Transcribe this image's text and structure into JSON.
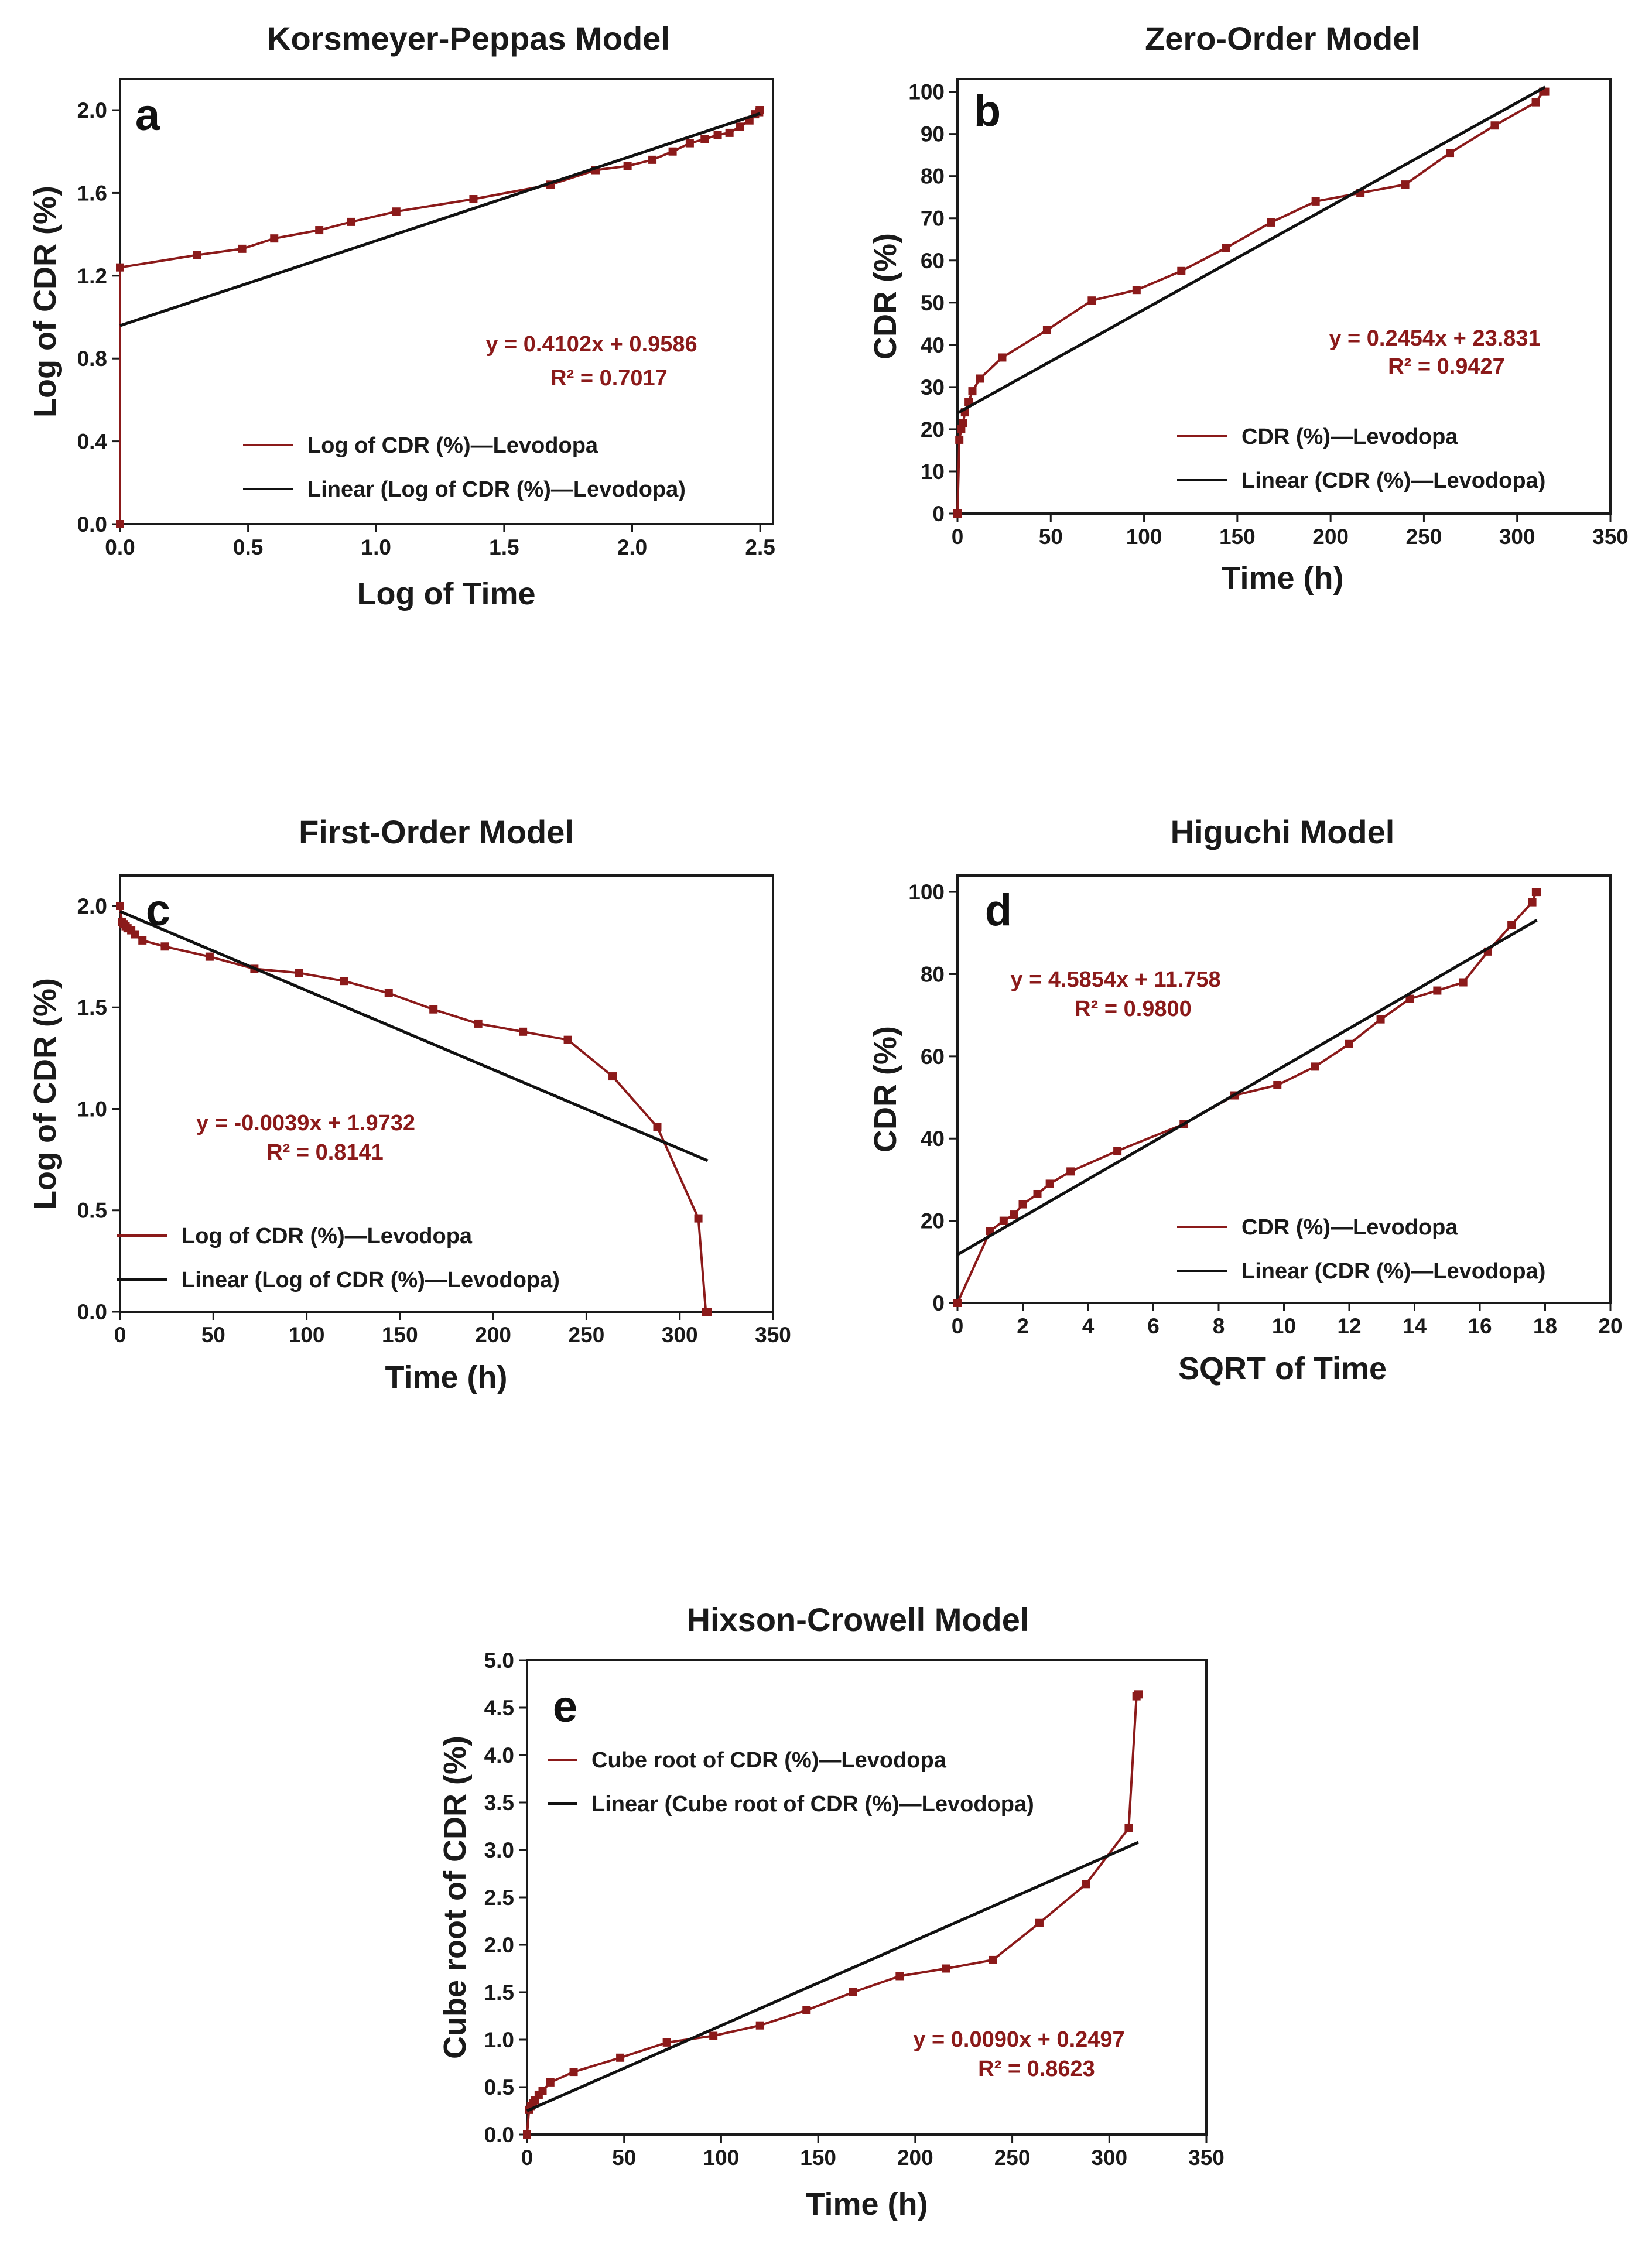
{
  "figure": {
    "colors": {
      "data": "#8b1a1a",
      "fit": "#111111",
      "axis": "#1a1a1a"
    }
  },
  "chart_data": [
    {
      "type": "line",
      "panel_label": "a",
      "title": "Korsmeyer-Peppas Model",
      "xlabel": "Log of Time",
      "ylabel": "Log of CDR (%)",
      "xlim": [
        0,
        2.55
      ],
      "ylim": [
        0,
        2.15
      ],
      "xticks": [
        0,
        0.5,
        1,
        1.5,
        2,
        2.5
      ],
      "xtick_labels": [
        "0.0",
        "0.5",
        "1.0",
        "1.5",
        "2.0",
        "2.5"
      ],
      "yticks": [
        0,
        0.4,
        0.8,
        1.2,
        1.6,
        2.0
      ],
      "ytick_labels": [
        "0.0",
        "0.4",
        "0.8",
        "1.2",
        "1.6",
        "2.0"
      ],
      "series": [
        {
          "name": "Log of CDR (%)—Levodopa",
          "kind": "data",
          "x": [
            0,
            0,
            0.301,
            0.477,
            0.602,
            0.778,
            0.903,
            1.079,
            1.38,
            1.681,
            1.857,
            1.982,
            2.079,
            2.158,
            2.225,
            2.283,
            2.334,
            2.38,
            2.42,
            2.458,
            2.48,
            2.496,
            2.498
          ],
          "y": [
            0,
            1.24,
            1.3,
            1.33,
            1.38,
            1.42,
            1.46,
            1.51,
            1.57,
            1.64,
            1.71,
            1.73,
            1.76,
            1.8,
            1.84,
            1.86,
            1.88,
            1.89,
            1.92,
            1.95,
            1.98,
            1.99,
            2.0
          ]
        },
        {
          "name": "Linear (Log of CDR (%)—Levodopa)",
          "kind": "fit",
          "x": [
            0,
            2.5
          ],
          "y": [
            0.9586,
            1.984
          ]
        }
      ],
      "equation": "y = 0.4102x + 0.9586",
      "r2": "R² = 0.7017",
      "legend_position": "bottom-right"
    },
    {
      "type": "line",
      "panel_label": "b",
      "title": "Zero-Order Model",
      "xlabel": "Time (h)",
      "ylabel": "CDR (%)",
      "xlim": [
        0,
        350
      ],
      "ylim": [
        0,
        103
      ],
      "xticks": [
        0,
        50,
        100,
        150,
        200,
        250,
        300,
        350
      ],
      "xtick_labels": [
        "0",
        "50",
        "100",
        "150",
        "200",
        "250",
        "300",
        "350"
      ],
      "yticks": [
        0,
        10,
        20,
        30,
        40,
        50,
        60,
        70,
        80,
        90,
        100
      ],
      "ytick_labels": [
        "0",
        "10",
        "20",
        "30",
        "40",
        "50",
        "60",
        "70",
        "80",
        "90",
        "100"
      ],
      "series": [
        {
          "name": "CDR (%)—Levodopa",
          "kind": "data",
          "x": [
            0,
            1,
            2,
            3,
            4,
            6,
            8,
            12,
            24,
            48,
            72,
            96,
            120,
            144,
            168,
            192,
            216,
            240,
            264,
            288,
            310,
            314,
            315
          ],
          "y": [
            0,
            17.5,
            20,
            21.5,
            24,
            26.5,
            29,
            32,
            37,
            43.5,
            50.5,
            53,
            57.5,
            63,
            69,
            74,
            76,
            78,
            85.5,
            92,
            97.5,
            100,
            100
          ]
        },
        {
          "name": "Linear (CDR (%)—Levodopa)",
          "kind": "fit",
          "x": [
            0,
            315
          ],
          "y": [
            23.831,
            101.1
          ]
        }
      ],
      "equation": "y = 0.2454x + 23.831",
      "r2": "R² = 0.9427",
      "legend_position": "bottom-right"
    },
    {
      "type": "line",
      "panel_label": "c",
      "title": "First-Order Model",
      "xlabel": "Time (h)",
      "ylabel": "Log of CDR (%)",
      "xlim": [
        0,
        350
      ],
      "ylim": [
        0,
        2.15
      ],
      "xticks": [
        0,
        50,
        100,
        150,
        200,
        250,
        300,
        350
      ],
      "xtick_labels": [
        "0",
        "50",
        "100",
        "150",
        "200",
        "250",
        "300",
        "350"
      ],
      "yticks": [
        0,
        0.5,
        1,
        1.5,
        2
      ],
      "ytick_labels": [
        "0.0",
        "0.5",
        "1.0",
        "1.5",
        "2.0"
      ],
      "series": [
        {
          "name": "Log of CDR (%)—Levodopa",
          "kind": "data",
          "x": [
            0,
            1,
            2,
            3,
            4,
            6,
            8,
            12,
            24,
            48,
            72,
            96,
            120,
            144,
            168,
            192,
            216,
            240,
            264,
            288,
            310,
            314,
            315
          ],
          "y": [
            2.0,
            1.92,
            1.91,
            1.9,
            1.89,
            1.88,
            1.86,
            1.83,
            1.8,
            1.75,
            1.69,
            1.67,
            1.63,
            1.57,
            1.49,
            1.42,
            1.38,
            1.34,
            1.16,
            0.91,
            0.46,
            0.0,
            0.0
          ]
        },
        {
          "name": "Linear (Log of CDR (%)—Levodopa)",
          "kind": "fit",
          "x": [
            0,
            315
          ],
          "y": [
            1.9732,
            0.7447
          ]
        }
      ],
      "equation": "y = -0.0039x + 1.9732",
      "r2": "R² = 0.8141",
      "legend_position": "bottom-left"
    },
    {
      "type": "line",
      "panel_label": "d",
      "title": "Higuchi Model",
      "xlabel": "SQRT of Time",
      "ylabel": "CDR (%)",
      "xlim": [
        0,
        20
      ],
      "ylim": [
        0,
        104
      ],
      "xticks": [
        0,
        2,
        4,
        6,
        8,
        10,
        12,
        14,
        16,
        18,
        20
      ],
      "xtick_labels": [
        "0",
        "2",
        "4",
        "6",
        "8",
        "10",
        "12",
        "14",
        "16",
        "18",
        "20"
      ],
      "yticks": [
        0,
        20,
        40,
        60,
        80,
        100
      ],
      "ytick_labels": [
        "0",
        "20",
        "40",
        "60",
        "80",
        "100"
      ],
      "series": [
        {
          "name": "CDR (%)—Levodopa",
          "kind": "data",
          "x": [
            0,
            1,
            1.414,
            1.732,
            2,
            2.449,
            2.828,
            3.464,
            4.899,
            6.928,
            8.485,
            9.798,
            10.954,
            12,
            12.961,
            13.856,
            14.697,
            15.492,
            16.248,
            16.971,
            17.607,
            17.72,
            17.748
          ],
          "y": [
            0,
            17.5,
            20,
            21.5,
            24,
            26.5,
            29,
            32,
            37,
            43.5,
            50.5,
            53,
            57.5,
            63,
            69,
            74,
            76,
            78,
            85.5,
            92,
            97.5,
            100,
            100
          ]
        },
        {
          "name": "Linear (CDR (%)—Levodopa)",
          "kind": "fit",
          "x": [
            0,
            17.748
          ],
          "y": [
            11.758,
            93.14
          ]
        }
      ],
      "equation": "y = 4.5854x + 11.758",
      "r2": "R² = 0.9800",
      "legend_position": "bottom-right"
    },
    {
      "type": "line",
      "panel_label": "e",
      "title": "Hixson-Crowell Model",
      "xlabel": "Time (h)",
      "ylabel": "Cube root of CDR (%)",
      "xlim": [
        0,
        350
      ],
      "ylim": [
        0,
        5.0
      ],
      "xticks": [
        0,
        50,
        100,
        150,
        200,
        250,
        300,
        350
      ],
      "xtick_labels": [
        "0",
        "50",
        "100",
        "150",
        "200",
        "250",
        "300",
        "350"
      ],
      "yticks": [
        0,
        0.5,
        1,
        1.5,
        2,
        2.5,
        3,
        3.5,
        4,
        4.5,
        5
      ],
      "ytick_labels": [
        "0.0",
        "0.5",
        "1.0",
        "1.5",
        "2.0",
        "2.5",
        "3.0",
        "3.5",
        "4.0",
        "4.5",
        "5.0"
      ],
      "series": [
        {
          "name": "Cube root of CDR (%)—Levodopa",
          "kind": "data",
          "x": [
            0,
            1,
            2,
            3,
            4,
            6,
            8,
            12,
            24,
            48,
            72,
            96,
            120,
            144,
            168,
            192,
            216,
            240,
            264,
            288,
            310,
            314,
            315
          ],
          "y": [
            0,
            0.26,
            0.3,
            0.33,
            0.36,
            0.42,
            0.46,
            0.55,
            0.66,
            0.81,
            0.97,
            1.04,
            1.15,
            1.31,
            1.5,
            1.67,
            1.75,
            1.84,
            2.23,
            2.64,
            3.23,
            4.62,
            4.64
          ]
        },
        {
          "name": "Linear (Cube root of CDR (%)—Levodopa)",
          "kind": "fit",
          "x": [
            0,
            315
          ],
          "y": [
            0.2497,
            3.08
          ]
        }
      ],
      "equation": "y = 0.0090x + 0.2497",
      "r2": "R² = 0.8623",
      "legend_position": "top-left"
    }
  ]
}
